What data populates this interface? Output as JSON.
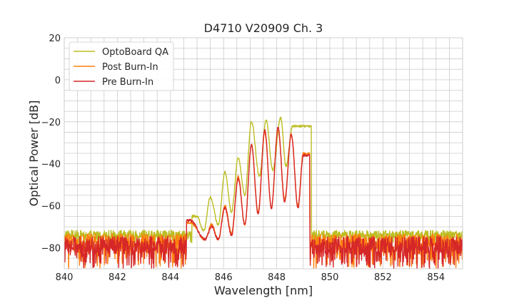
{
  "chart_data": {
    "type": "line",
    "title": "D4710 V20909 Ch. 3",
    "xlabel": "Wavelength [nm]",
    "ylabel": "Optical Power [dB]",
    "xlim": [
      840,
      855
    ],
    "ylim": [
      -90,
      20
    ],
    "xticks": [
      840,
      842,
      844,
      846,
      848,
      850,
      852,
      854
    ],
    "xtick_labels": [
      "840",
      "842",
      "844",
      "846",
      "848",
      "850",
      "852",
      "854"
    ],
    "yticks": [
      -80,
      -60,
      -40,
      -20,
      0,
      20
    ],
    "ytick_labels": [
      "−80",
      "−60",
      "−40",
      "−20",
      "0",
      "20"
    ],
    "grid": true,
    "minor_grid": true,
    "legend_position": "upper left",
    "series": [
      {
        "name": "OptoBoard QA",
        "color": "#bcbd22",
        "noise_floor": -74,
        "noise_range": [
          -79,
          -71
        ],
        "spectrum_band": [
          844.8,
          849.3
        ],
        "peaks": [
          {
            "x": 845.0,
            "y": -65
          },
          {
            "x": 845.5,
            "y": -56
          },
          {
            "x": 846.05,
            "y": -44
          },
          {
            "x": 846.55,
            "y": -37
          },
          {
            "x": 847.05,
            "y": -20
          },
          {
            "x": 847.6,
            "y": -19
          },
          {
            "x": 848.15,
            "y": -18
          },
          {
            "x": 848.6,
            "y": -22
          }
        ],
        "valleys": [
          {
            "x": 845.25,
            "y": -72
          },
          {
            "x": 845.8,
            "y": -69
          },
          {
            "x": 846.3,
            "y": -63
          },
          {
            "x": 846.8,
            "y": -55
          },
          {
            "x": 847.35,
            "y": -46
          },
          {
            "x": 847.85,
            "y": -43
          },
          {
            "x": 848.35,
            "y": -41
          }
        ]
      },
      {
        "name": "Post Burn-In",
        "color": "#ff7f0e",
        "noise_floor": -78,
        "noise_range": [
          -90,
          -72
        ],
        "spectrum_band": [
          844.6,
          849.25
        ],
        "peaks": [
          {
            "x": 844.75,
            "y": -68
          },
          {
            "x": 845.55,
            "y": -69
          },
          {
            "x": 846.05,
            "y": -60
          },
          {
            "x": 846.55,
            "y": -46
          },
          {
            "x": 847.05,
            "y": -31
          },
          {
            "x": 847.55,
            "y": -25
          },
          {
            "x": 848.05,
            "y": -23
          },
          {
            "x": 848.55,
            "y": -26
          },
          {
            "x": 849.0,
            "y": -35
          }
        ],
        "valleys": [
          {
            "x": 845.3,
            "y": -76
          },
          {
            "x": 845.8,
            "y": -76
          },
          {
            "x": 846.3,
            "y": -73
          },
          {
            "x": 846.8,
            "y": -69
          },
          {
            "x": 847.3,
            "y": -63
          },
          {
            "x": 847.8,
            "y": -61
          },
          {
            "x": 848.3,
            "y": -57
          },
          {
            "x": 848.8,
            "y": -60
          }
        ]
      },
      {
        "name": "Pre Burn-In",
        "color": "#d62728",
        "noise_floor": -80,
        "noise_range": [
          -90,
          -73
        ],
        "spectrum_band": [
          844.6,
          849.25
        ],
        "peaks": [
          {
            "x": 844.75,
            "y": -67
          },
          {
            "x": 845.55,
            "y": -70
          },
          {
            "x": 846.05,
            "y": -61
          },
          {
            "x": 846.55,
            "y": -47
          },
          {
            "x": 847.05,
            "y": -31
          },
          {
            "x": 847.55,
            "y": -24
          },
          {
            "x": 848.05,
            "y": -23
          },
          {
            "x": 848.55,
            "y": -26
          },
          {
            "x": 849.0,
            "y": -36
          }
        ],
        "valleys": [
          {
            "x": 845.3,
            "y": -76
          },
          {
            "x": 845.8,
            "y": -76
          },
          {
            "x": 846.3,
            "y": -74
          },
          {
            "x": 846.8,
            "y": -69
          },
          {
            "x": 847.3,
            "y": -64
          },
          {
            "x": 847.8,
            "y": -61
          },
          {
            "x": 848.3,
            "y": -58
          },
          {
            "x": 848.8,
            "y": -61
          }
        ]
      }
    ]
  }
}
